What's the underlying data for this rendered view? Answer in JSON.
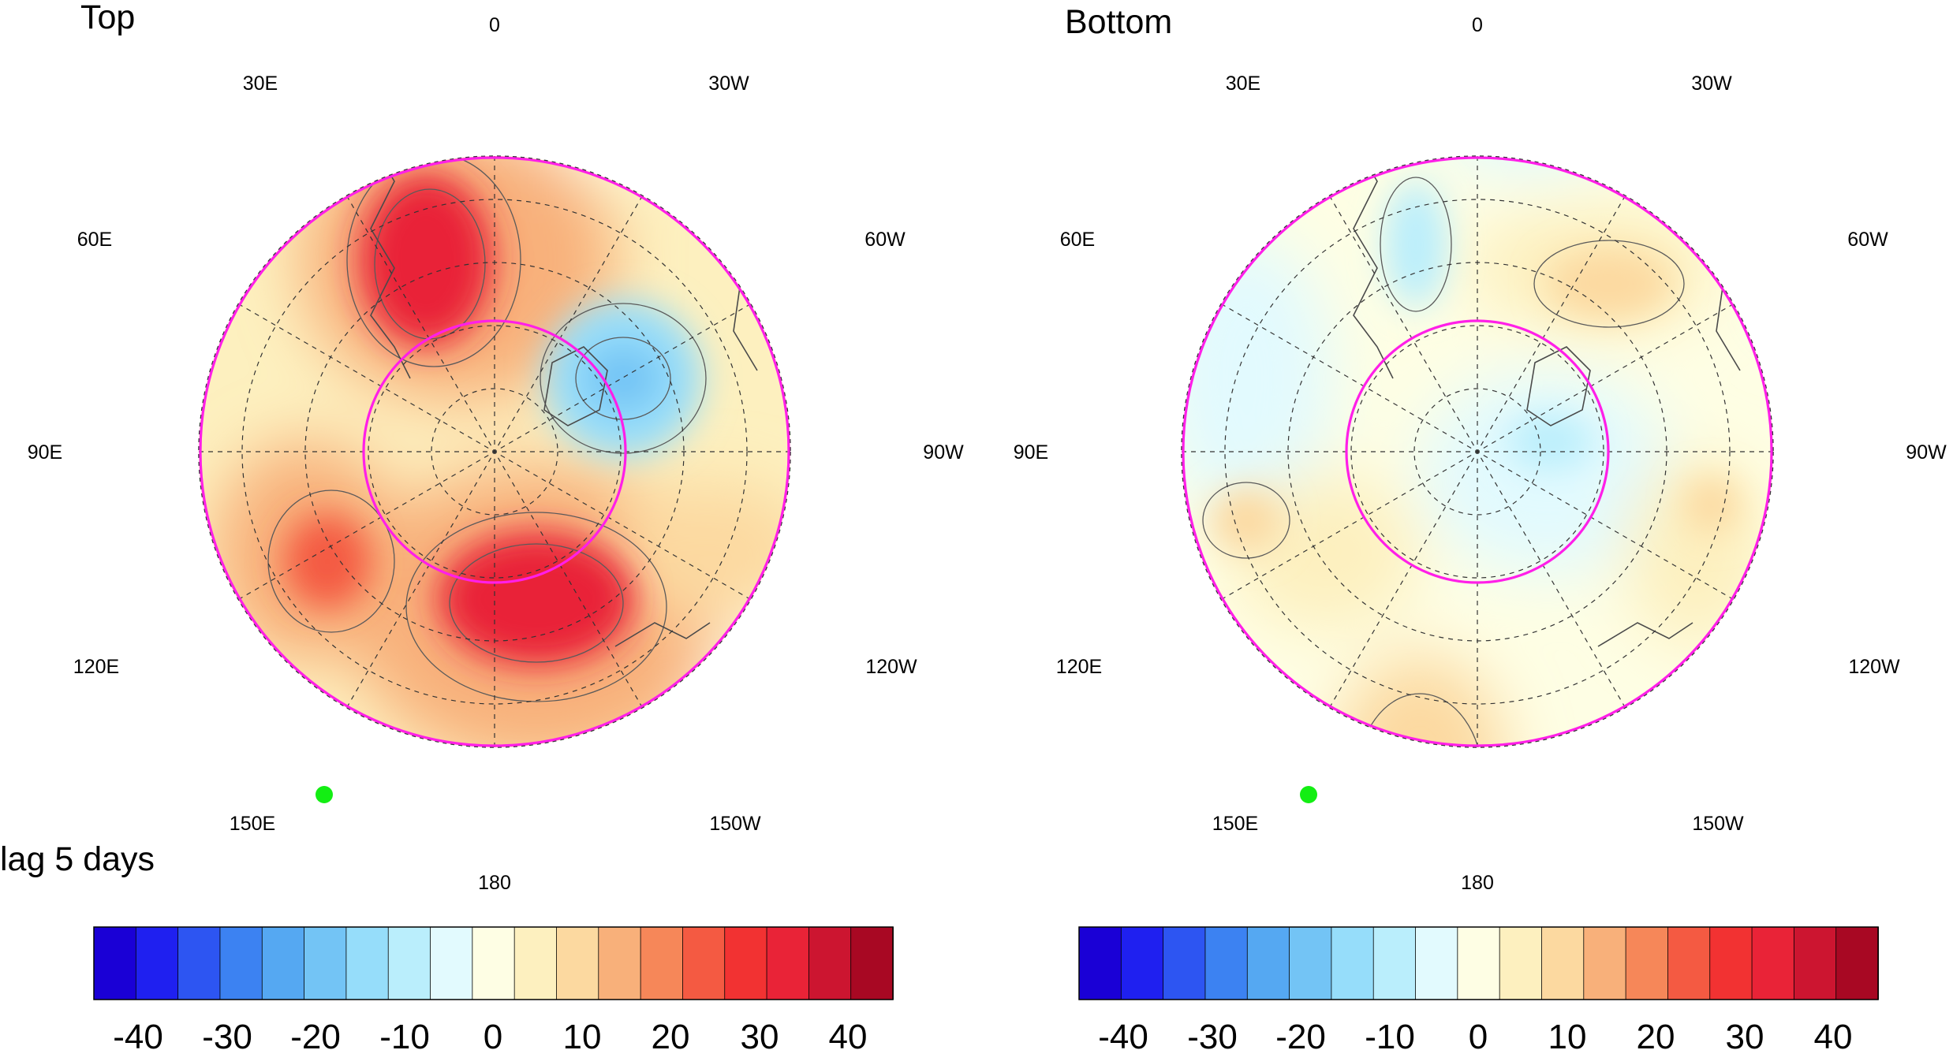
{
  "panels": [
    {
      "title": "Top",
      "lon_labels": [
        "0",
        "30W",
        "60W",
        "90W",
        "120W",
        "150W",
        "180",
        "150E",
        "120E",
        "90E",
        "60E",
        "30E"
      ]
    },
    {
      "title": "Bottom",
      "lon_labels": [
        "0",
        "30W",
        "60W",
        "90W",
        "120W",
        "150W",
        "180",
        "150E",
        "120E",
        "90E",
        "60E",
        "30E"
      ]
    }
  ],
  "lag_label": "lag 5 days",
  "colorbar": {
    "tick_labels": [
      "-40",
      "-30",
      "-20",
      "-10",
      "0",
      "10",
      "20",
      "30",
      "40"
    ],
    "colors": [
      "#1a00d6",
      "#1f20f0",
      "#2d55f2",
      "#3c82f2",
      "#55a8f2",
      "#73c4f5",
      "#96ddfa",
      "#baeefc",
      "#e2fafe",
      "#fefee4",
      "#fdf0bf",
      "#fcd9a0",
      "#f8b07a",
      "#f68759",
      "#f45a42",
      "#f23232",
      "#e92337",
      "#cc1530",
      "#a80823"
    ]
  },
  "map_colors": {
    "ring": "#ff1fe8",
    "marker": "#13ee13",
    "coast": "#4a4a4a"
  }
}
